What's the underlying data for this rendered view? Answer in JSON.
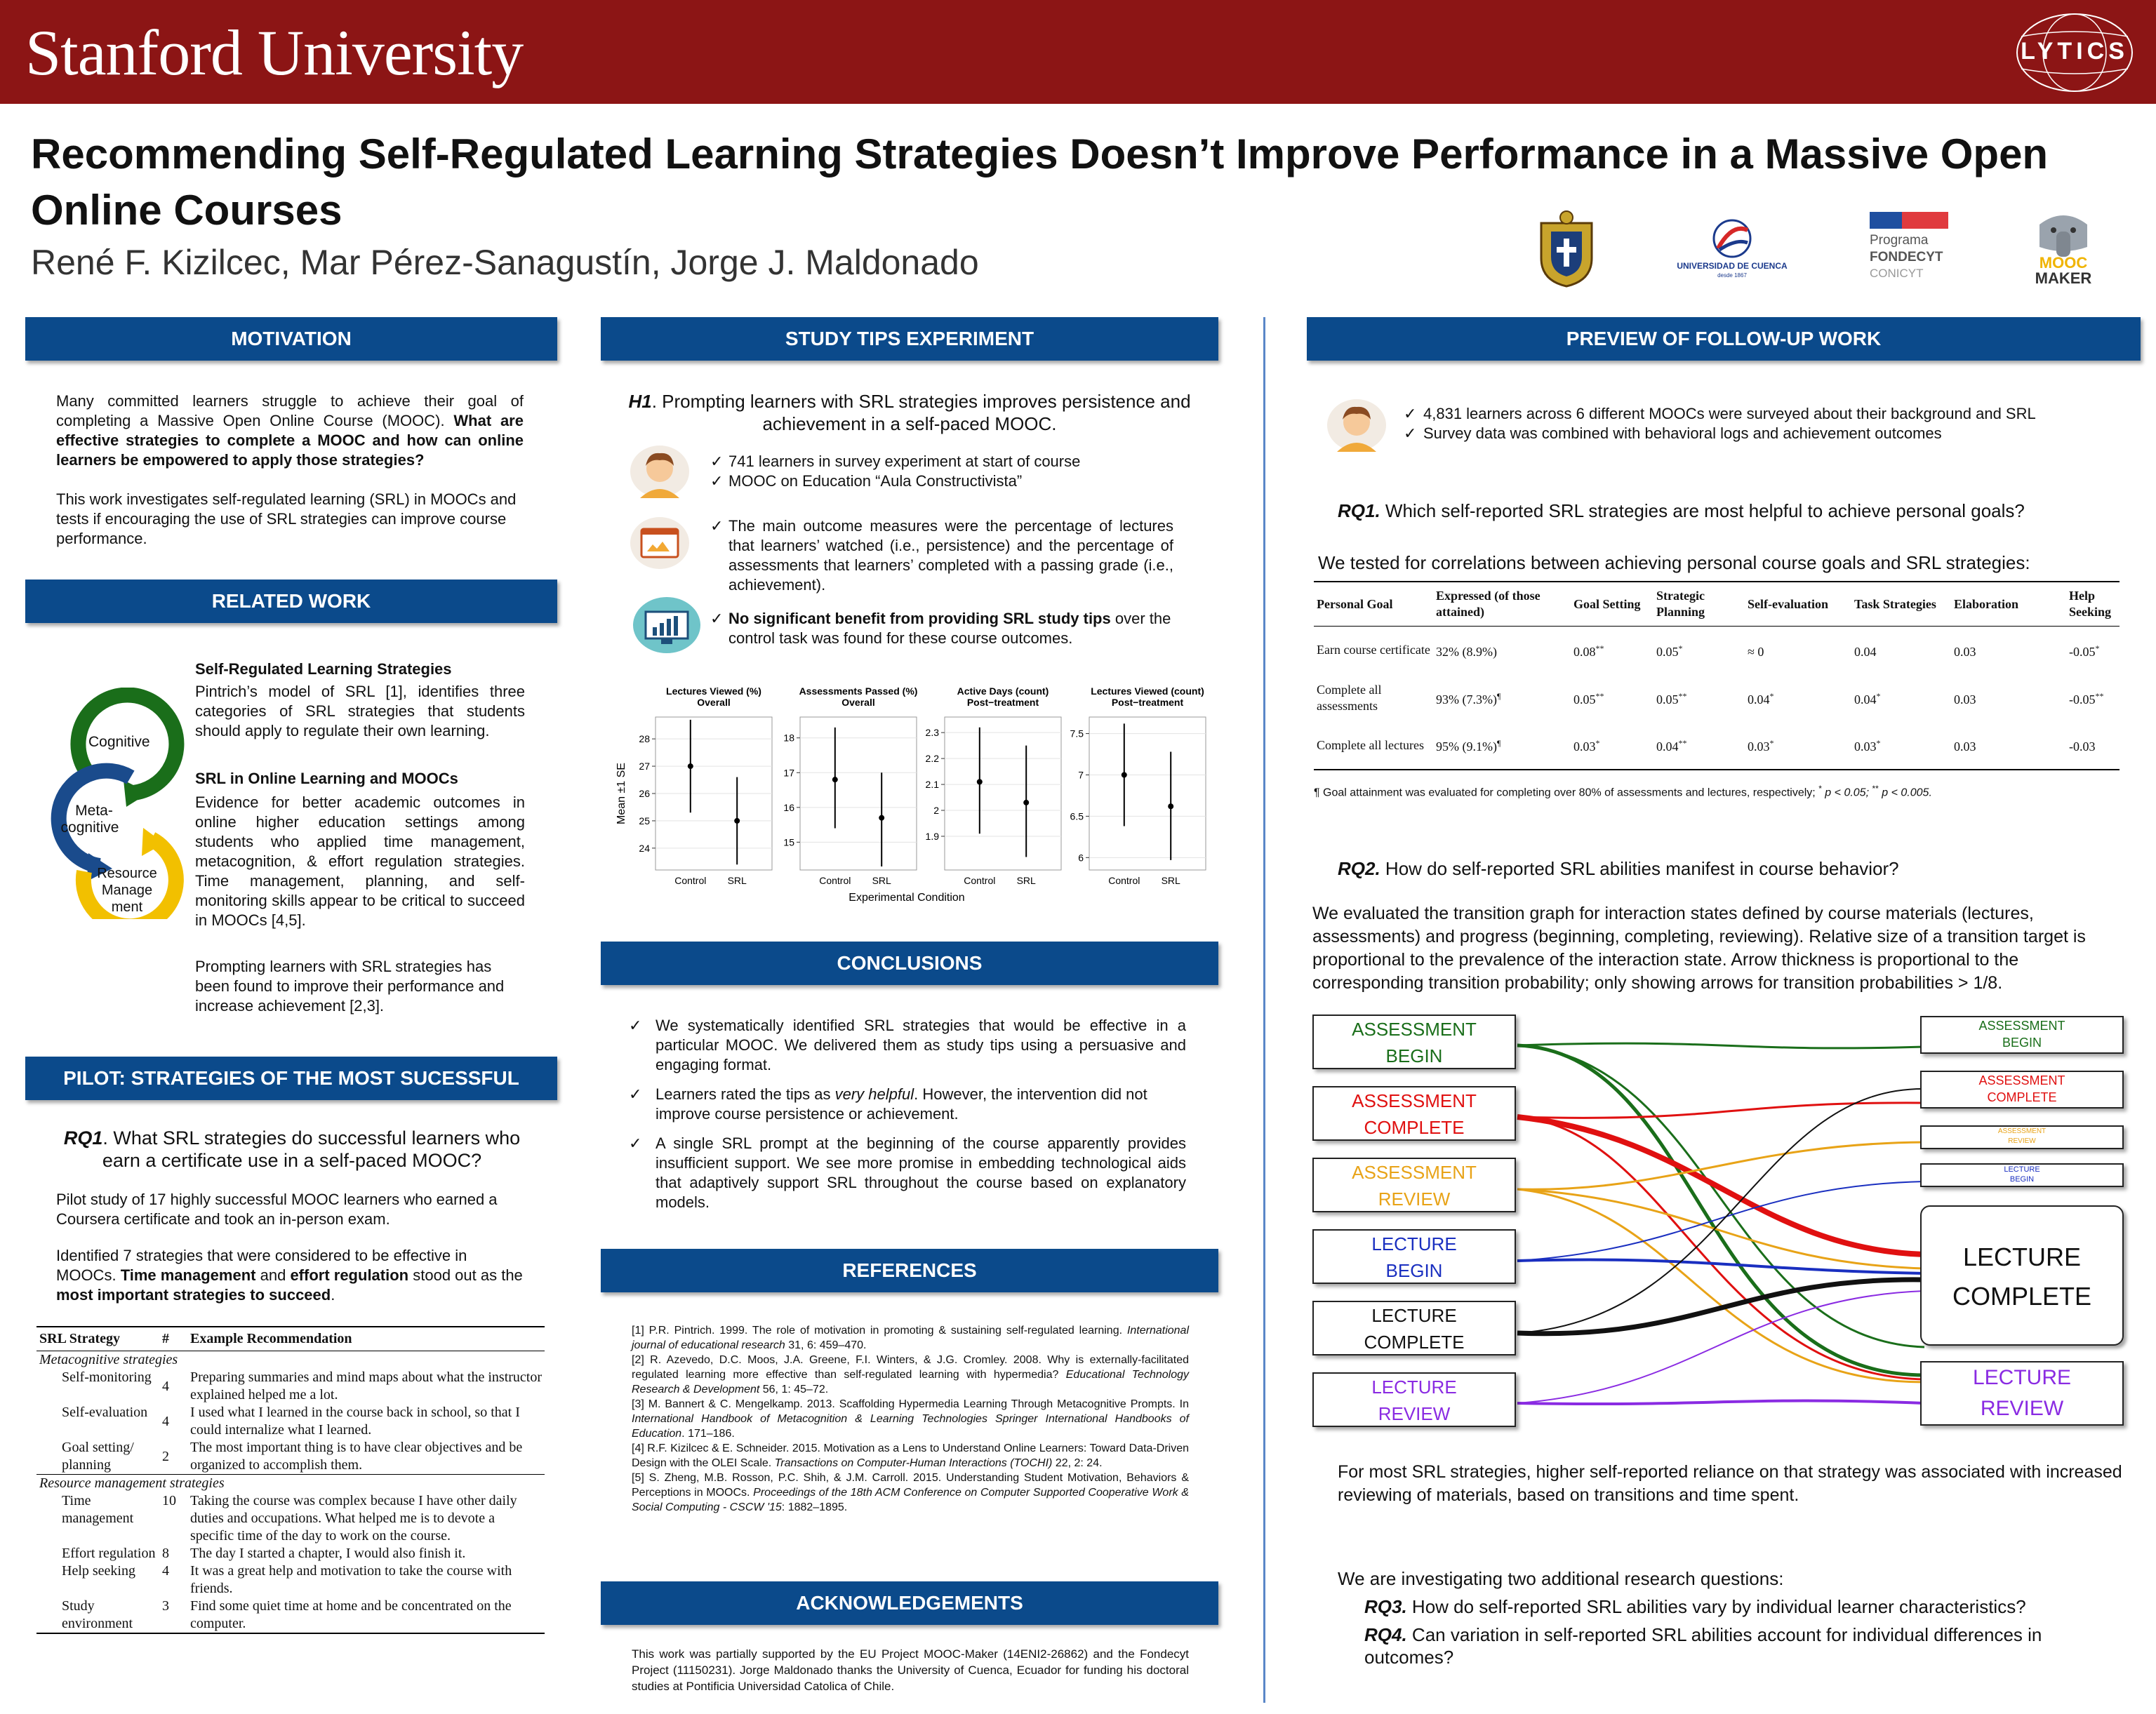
{
  "header": {
    "university": "Stanford University",
    "lab_logo": "LYTICS",
    "title": "Recommending Self-Regulated Learning Strategies Doesn’t Improve Performance in a Massive Open Online Courses",
    "authors": "René F. Kizilcec, Mar Pérez-Sanagustín, Jorge J. Maldonado",
    "partner_logos": {
      "cuenca": "UNIVERSIDAD DE CUENCA",
      "cuenca_sub": "desde 1867",
      "fondecyt_1": "Programa",
      "fondecyt_2": "FONDECYT",
      "fondecyt_3": "CONICYT",
      "moocmaker_1": "MOOC",
      "moocmaker_2": "MAKER"
    }
  },
  "motivation": {
    "heading": "MOTIVATION",
    "p1_a": "Many committed learners struggle to achieve their goal of completing a Massive Open Online Course (MOOC).",
    "p1_b": "What are effective strategies to complete a MOOC and how can online learners be empowered to apply those strategies?",
    "p2": "This work investigates self-regulated learning (SRL) in MOOCs and tests if encouraging the use of SRL strategies can improve course performance."
  },
  "related_work": {
    "heading": "RELATED WORK",
    "cycle_labels": [
      "Cognitive",
      "Meta-",
      "cognitive",
      "Resource",
      "Manage",
      "ment"
    ],
    "h1": "Self-Regulated Learning Strategies",
    "p1": "Pintrich’s model of SRL [1], identifies three categories of SRL strategies that students should apply to regulate their own learning.",
    "h2": "SRL in Online Learning and MOOCs",
    "p2": "Evidence for better academic outcomes in online higher education settings among students who applied time management, metacognition, & effort regulation strategies. Time management, planning, and self-monitoring skills appear to be critical to succeed in MOOCs [4,5].",
    "p3": "Prompting learners with SRL strategies has been found to improve their performance and increase achievement [2,3]."
  },
  "pilot": {
    "heading": "PILOT: STRATEGIES OF THE MOST SUCESSFUL",
    "rq_label": "RQ1",
    "rq_text": ". What SRL strategies do successful learners who earn a certificate use in a self-paced MOOC?",
    "p1": "Pilot study of 17 highly successful MOOC learners who earned a Coursera certificate and took an in-person exam.",
    "p2_a": "Identified 7 strategies that were considered to be effective in MOOCs.",
    "p2_b": "Time management",
    "p2_c": "and",
    "p2_d": "effort regulation",
    "p2_e": "stood out as the",
    "p2_f": "most important strategies to succeed",
    "p2_g": ".",
    "table": {
      "headers": [
        "SRL Strategy",
        "#",
        "Example Recommendation"
      ],
      "group1": "Metacognitive strategies",
      "rows1": [
        {
          "strategy": "Self-monitoring",
          "n": "4",
          "example": "Preparing summaries and mind maps about what the instructor explained helped me a lot."
        },
        {
          "strategy": "Self-evaluation",
          "n": "4",
          "example": "I used what I learned in the course back in school, so that I could internalize what I learned."
        },
        {
          "strategy": "Goal setting/ planning",
          "n": "2",
          "example": "The most important thing is to have clear objectives and be organized to accomplish them."
        }
      ],
      "group2": "Resource management strategies",
      "rows2": [
        {
          "strategy": "Time management",
          "n": "10",
          "example": "Taking the course was complex because I have other daily duties and occupations. What helped me is to devote a specific time of the day to work on the course."
        },
        {
          "strategy": "Effort regulation",
          "n": "8",
          "example": "The day I started a chapter, I would also finish it."
        },
        {
          "strategy": "Help seeking",
          "n": "4",
          "example": "It was a great help and motivation to take the course with friends."
        },
        {
          "strategy": "Study environment",
          "n": "3",
          "example": "Find some quiet time at home and be concentrated on the computer."
        }
      ]
    }
  },
  "experiment": {
    "heading": "STUDY TIPS EXPERIMENT",
    "h1_label": "H1",
    "h1_text": ". Prompting learners with SRL strategies improves persistence and achievement in a self-paced MOOC.",
    "b1": "741 learners in survey experiment at start of course",
    "b2": "MOOC on Education “Aula Constructivista”",
    "b3": "The main outcome measures were the percentage of lectures that learners’ watched (i.e., persistence) and the percentage of assessments that learners’ completed with a passing grade (i.e., achievement).",
    "b4_bold": "No significant benefit from providing SRL study tips",
    "b4_rest": " over the control task was found for these course outcomes."
  },
  "chart_data": {
    "type": "scatter",
    "ylabel": "Mean ±1 SE",
    "xlabel": "Experimental Condition",
    "categories": [
      "Control",
      "SRL"
    ],
    "panels": [
      {
        "title1": "Lectures Viewed (%)",
        "title2": "Overall",
        "ylim": [
          23.2,
          28.8
        ],
        "ticks": [
          24,
          25,
          26,
          27,
          28
        ],
        "mean": [
          27.0,
          25.0
        ],
        "lo": [
          25.3,
          23.4
        ],
        "hi": [
          28.7,
          26.6
        ]
      },
      {
        "title1": "Assessments Passed (%)",
        "title2": "Overall",
        "ylim": [
          14.2,
          18.6
        ],
        "ticks": [
          15,
          16,
          17,
          18
        ],
        "mean": [
          16.8,
          15.7
        ],
        "lo": [
          15.4,
          14.3
        ],
        "hi": [
          18.3,
          17.0
        ]
      },
      {
        "title1": "Active Days (count)",
        "title2": "Post−treatment",
        "ylim": [
          1.77,
          2.36
        ],
        "ticks": [
          1.9,
          2.0,
          2.1,
          2.2,
          2.3
        ],
        "mean": [
          2.11,
          2.03
        ],
        "lo": [
          1.91,
          1.82
        ],
        "hi": [
          2.32,
          2.25
        ]
      },
      {
        "title1": "Lectures Viewed (count)",
        "title2": "Post−treatment",
        "ylim": [
          5.85,
          7.7
        ],
        "ticks": [
          6.0,
          6.5,
          7.0,
          7.5
        ],
        "mean": [
          7.0,
          6.62
        ],
        "lo": [
          6.38,
          5.97
        ],
        "hi": [
          7.62,
          7.28
        ]
      }
    ]
  },
  "conclusions": {
    "heading": "CONCLUSIONS",
    "c1": "We systematically identified SRL strategies that would be effective in a particular MOOC. We delivered them as study tips using a persuasive and engaging format.",
    "c2_a": "Learners rated the tips as",
    "c2_b": "very helpful",
    "c2_c": ". However, the intervention did not improve course persistence or achievement.",
    "c3": "A single SRL prompt at the beginning of the course apparently provides insufficient support. We see more promise in embedding technological aids that adaptively support SRL throughout the course based on explanatory models."
  },
  "references": {
    "heading": "REFERENCES",
    "r1a": "[1]   P.R. Pintrich. 1999. The role of motivation in promoting & sustaining self-regulated learning.",
    "r1b": "International journal of educational research",
    "r1c": " 31, 6: 459–470.",
    "r2a": "[2] R. Azevedo, D.C. Moos, J.A. Greene, F.I. Winters, & J.G. Cromley. 2008. Why is externally-facilitated regulated learning more effective than self-regulated learning with hypermedia?",
    "r2b": "Educational Technology Research & Development",
    "r2c": " 56, 1: 45–72.",
    "r3a": "[3] M. Bannert & C. Mengelkamp. 2013. Scaffolding Hypermedia Learning Through Metacognitive Prompts. In",
    "r3b": "International Handbook of Metacognition & Learning Technologies Springer International Handbooks of Education",
    "r3c": ". 171–186.",
    "r4a": "[4] R.F. Kizilcec & E. Schneider. 2015. Motivation as a Lens to Understand Online Learners: Toward Data-Driven Design with the OLEI Scale.",
    "r4b": "Transactions on Computer-Human Interactions (TOCHI)",
    "r4c": " 22, 2: 24.",
    "r5a": "[5] S. Zheng, M.B. Rosson, P.C. Shih, & J.M. Carroll. 2015. Understanding Student Motivation, Behaviors & Perceptions in MOOCs.",
    "r5b": "Proceedings of the 18th ACM Conference on Computer Supported Cooperative Work & Social Computing - CSCW '15",
    "r5c": ": 1882–1895."
  },
  "acknowledgements": {
    "heading": "ACKNOWLEDGEMENTS",
    "text": "This work was partially supported by the EU Project MOOC-Maker (14ENI2-26862) and the Fondecyt Project (11150231). Jorge Maldonado thanks the University of Cuenca, Ecuador for funding his doctoral studies at Pontificia Universidad Catolica of Chile."
  },
  "followup": {
    "heading": "PREVIEW OF FOLLOW-UP WORK",
    "b1": "4,831 learners across 6 different MOOCs were surveyed about their background and SRL",
    "b2": "Survey data was combined with behavioral logs and achievement outcomes",
    "rq1_label": "RQ1.",
    "rq1_text": " Which self-reported SRL strategies are most helpful to achieve personal goals?",
    "corr_intro": "We tested for correlations between achieving personal course goals and SRL strategies:",
    "corr_table": {
      "headers": [
        "Personal Goal",
        "Expressed (of those attained)",
        "Goal Setting",
        "Strategic Planning",
        "Self-evaluation",
        "Task Strategies",
        "Elaboration",
        "Help Seeking"
      ],
      "rows": [
        {
          "goal": "Earn course certificate",
          "expressed": "32% (8.9%)",
          "exp_mark": "",
          "vals": [
            "0.08",
            "0.05",
            "≈ 0",
            "0.04",
            "0.03",
            "-0.05"
          ],
          "marks": [
            "**",
            "*",
            "",
            "",
            "",
            "*"
          ]
        },
        {
          "goal": "Complete all assessments",
          "expressed": "93% (7.3%)",
          "exp_mark": "¶",
          "vals": [
            "0.05",
            "0.05",
            "0.04",
            "0.04",
            "0.03",
            "-0.05"
          ],
          "marks": [
            "**",
            "**",
            "*",
            "*",
            "",
            "**"
          ]
        },
        {
          "goal": "Complete all lectures",
          "expressed": "95% (9.1%)",
          "exp_mark": "¶",
          "vals": [
            "0.03",
            "0.04",
            "0.03",
            "0.03",
            "0.03",
            "-0.03"
          ],
          "marks": [
            "*",
            "**",
            "*",
            "*",
            "",
            ""
          ]
        }
      ],
      "footnote_a": "¶ Goal attainment was evaluated for completing over 80% of assessments and lectures, respectively;",
      "footnote_b": " p < 0.05;",
      "footnote_c": " p < 0.005."
    },
    "rq2_label": "RQ2.",
    "rq2_text": " How do self-reported SRL abilities manifest in course behavior?",
    "rq2_desc": "We evaluated the transition graph for interaction states defined by course materials (lectures, assessments) and progress (beginning, completing, reviewing). Relative size of a transition target is proportional to the prevalence of the interaction state. Arrow thickness is proportional to the corresponding transition probability; only showing arrows for transition probabilities > 1/8.",
    "graph": {
      "left_nodes": [
        {
          "l1": "ASSESSMENT",
          "l2": "BEGIN",
          "color": "#1a6e1a"
        },
        {
          "l1": "ASSESSMENT",
          "l2": "COMPLETE",
          "color": "#e01010"
        },
        {
          "l1": "ASSESSMENT",
          "l2": "REVIEW",
          "color": "#e8a317"
        },
        {
          "l1": "LECTURE",
          "l2": "BEGIN",
          "color": "#1a2fc0"
        },
        {
          "l1": "LECTURE",
          "l2": "COMPLETE",
          "color": "#111111"
        },
        {
          "l1": "LECTURE",
          "l2": "REVIEW",
          "color": "#8a2be2"
        }
      ],
      "right_nodes": [
        {
          "l1": "ASSESSMENT",
          "l2": "BEGIN",
          "color": "#1a6e1a"
        },
        {
          "l1": "ASSESSMENT",
          "l2": "COMPLETE",
          "color": "#e01010"
        },
        {
          "l1": "ASSESSMENT",
          "l2": "REVIEW",
          "color": "#e8a317"
        },
        {
          "l1": "LECTURE",
          "l2": "BEGIN",
          "color": "#1a2fc0"
        },
        {
          "l1": "LECTURE",
          "l2": "COMPLETE",
          "color": "#111111"
        },
        {
          "l1": "LECTURE",
          "l2": "REVIEW",
          "color": "#8a2be2"
        }
      ]
    },
    "finding": "For most SRL strategies, higher self-reported reliance on that strategy was associated with increased reviewing of materials, based on transitions and time spent.",
    "more_intro": "We are investigating two additional research questions:",
    "rq3_label": "RQ3.",
    "rq3_text": " How do self-reported SRL abilities vary by individual learner characteristics?",
    "rq4_label": "RQ4.",
    "rq4_text": " Can variation in self-reported SRL abilities account for individual differences in outcomes?"
  },
  "colors": {
    "stanford_red": "#8c1515",
    "section_blue": "#0b4a8b",
    "cognitive_green": "#1a6e1a",
    "metacognitive_blue": "#1a4b8c",
    "resource_yellow": "#f2c000"
  }
}
